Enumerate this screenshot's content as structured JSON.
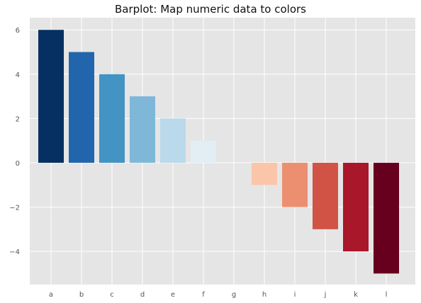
{
  "chart_data": {
    "type": "bar",
    "title": "Barplot: Map numeric data to colors",
    "xlabel": "",
    "ylabel": "",
    "categories": [
      "a",
      "b",
      "c",
      "d",
      "e",
      "f",
      "g",
      "h",
      "i",
      "j",
      "k",
      "l"
    ],
    "values": [
      6,
      5,
      4,
      3,
      2,
      1,
      0,
      -1,
      -2,
      -3,
      -4,
      -5
    ],
    "colors": [
      "#053061",
      "#2166ac",
      "#4393c3",
      "#7fb7d9",
      "#bad9ea",
      "#e2eef4",
      "#f7f7f7",
      "#fbc5aa",
      "#ec8f71",
      "#d05346",
      "#a9172b",
      "#67001f"
    ],
    "ylim": [
      -5.5,
      6.55
    ],
    "yticks": [
      -4,
      -2,
      0,
      2,
      4,
      6
    ],
    "ytick_labels": [
      "−4",
      "−2",
      "0",
      "2",
      "4",
      "6"
    ],
    "grid": true,
    "style": {
      "background": "#e5e5e5",
      "grid_color": "#ffffff",
      "tick_label_color": "#555555"
    }
  }
}
